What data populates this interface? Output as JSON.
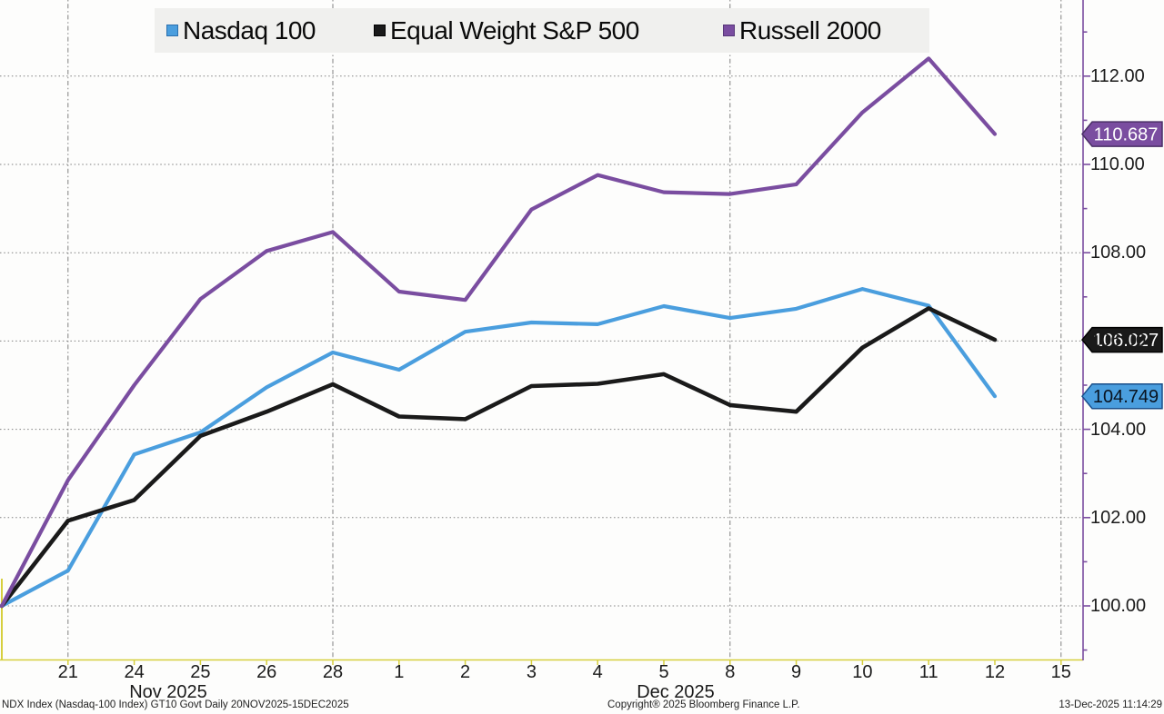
{
  "chart_data": {
    "type": "line",
    "title": "",
    "normalized_base": 100,
    "y_axis": {
      "side": "right",
      "range": [
        98.8,
        113.7
      ],
      "major_tick_step": 2,
      "minor_tick_step": 1,
      "tick_labels": [
        "100.00",
        "102.00",
        "104.00",
        "106.00",
        "108.00",
        "110.00",
        "112.00"
      ],
      "grid": true,
      "axis_color": "#7a4da0"
    },
    "x_axis": {
      "dates": [
        "Nov 20",
        "Nov 21",
        "Nov 24",
        "Nov 25",
        "Nov 26",
        "Nov 28",
        "Dec 1",
        "Dec 2",
        "Dec 3",
        "Dec 4",
        "Dec 5",
        "Dec 8",
        "Dec 9",
        "Dec 10",
        "Dec 11",
        "Dec 12"
      ],
      "tick_labels": [
        "21",
        "24",
        "25",
        "26",
        "28",
        "1",
        "2",
        "3",
        "4",
        "5",
        "8",
        "9",
        "10",
        "11",
        "12",
        "15"
      ],
      "gridline_tick_labels": [
        "21",
        "28",
        "8",
        "15"
      ],
      "month_labels": [
        "Nov 2025",
        "Dec 2025"
      ],
      "axis_color": "#d6cf3e"
    },
    "legend_position": "top",
    "series": [
      {
        "name": "Nasdaq 100",
        "color": "#4a9ede",
        "swatch_border": "#2b6fae",
        "tag_text_color": "#09131f",
        "tag_border": "#1a4f8a",
        "last_value_tag": "104.749",
        "values": [
          100.0,
          100.8,
          103.43,
          103.93,
          104.95,
          105.74,
          105.35,
          106.21,
          106.42,
          106.38,
          106.79,
          106.52,
          106.73,
          107.18,
          106.8,
          104.749
        ]
      },
      {
        "name": "Equal Weight S&P 500",
        "color": "#1a1a1a",
        "swatch_border": "#000000",
        "tag_text_color": "#ffffff",
        "tag_border": "#000000",
        "last_value_tag": "106.027",
        "values": [
          100.0,
          101.93,
          102.4,
          103.85,
          104.4,
          105.02,
          104.29,
          104.23,
          104.98,
          105.03,
          105.25,
          104.55,
          104.4,
          105.85,
          106.74,
          106.027
        ]
      },
      {
        "name": "Russell 2000",
        "color": "#7a4da0",
        "swatch_border": "#563678",
        "tag_text_color": "#ffffff",
        "tag_border": "#4a2e66",
        "last_value_tag": "110.687",
        "values": [
          100.0,
          102.85,
          105.0,
          106.95,
          108.04,
          108.47,
          107.12,
          106.93,
          108.98,
          109.76,
          109.37,
          109.33,
          109.55,
          111.18,
          112.4,
          110.687
        ]
      }
    ]
  },
  "footer": {
    "security_info": "NDX Index (Nasdaq-100 Index) GT10  Govt Daily 20NOV2025-15DEC2025",
    "copyright": "Copyright® 2025 Bloomberg Finance L.P.",
    "timestamp": "13-Dec-2025 11:14:29"
  }
}
